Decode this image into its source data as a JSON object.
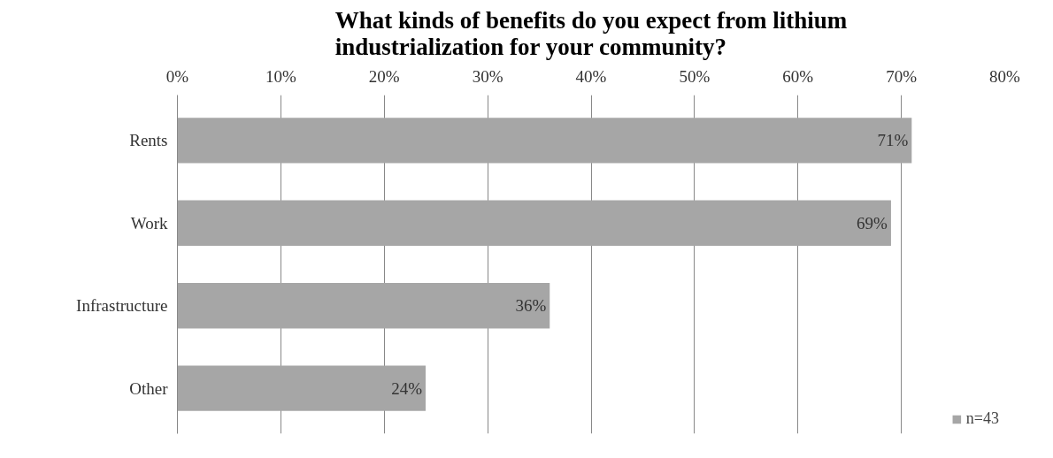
{
  "chart_data": {
    "type": "bar",
    "orientation": "horizontal",
    "title": "What kinds of benefits do you expect from lithium\nindustrialization for your community?",
    "categories": [
      "Rents",
      "Work",
      "Infrastructure",
      "Other"
    ],
    "series": [
      {
        "name": "n=43",
        "color": "#a6a6a6",
        "values": [
          71,
          69,
          36,
          24
        ],
        "value_labels": [
          "71%",
          "69%",
          "36%",
          "24%"
        ]
      }
    ],
    "xlim": [
      0,
      80
    ],
    "xticks": [
      {
        "value": 0,
        "label": "0%"
      },
      {
        "value": 10,
        "label": "10%"
      },
      {
        "value": 20,
        "label": "20%"
      },
      {
        "value": 30,
        "label": "30%"
      },
      {
        "value": 40,
        "label": "40%"
      },
      {
        "value": 50,
        "label": "50%"
      },
      {
        "value": 60,
        "label": "60%"
      },
      {
        "value": 70,
        "label": "70%"
      },
      {
        "value": 80,
        "label": "80%"
      }
    ],
    "grid": "x",
    "legend": "bottom right"
  }
}
